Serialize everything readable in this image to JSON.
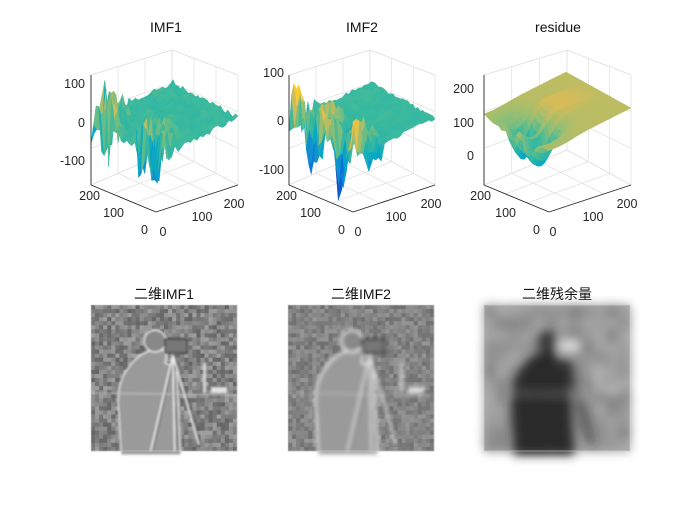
{
  "figure": {
    "background": "#ffffff",
    "colormap": "parula",
    "colormap_stops": [
      "#352a87",
      "#0363e1",
      "#1485d4",
      "#06a7c6",
      "#38b99e",
      "#92bf73",
      "#d9ba56",
      "#fcce2e",
      "#f9fb0e"
    ]
  },
  "chart_data": [
    {
      "type": "surface3d",
      "title": "IMF1",
      "xlabel": "",
      "ylabel": "",
      "zlabel": "",
      "x_ticks": [
        0,
        100,
        200
      ],
      "y_ticks": [
        0,
        100,
        200
      ],
      "z_ticks": [
        -100,
        0,
        100
      ],
      "xlim": [
        0,
        256
      ],
      "ylim": [
        0,
        256
      ],
      "zlim": [
        -140,
        140
      ],
      "grid": true,
      "surface": "high-frequency fluctuations approximately between -120 and 140, near-flat on the outer half"
    },
    {
      "type": "surface3d",
      "title": "IMF2",
      "xlabel": "",
      "ylabel": "",
      "zlabel": "",
      "x_ticks": [
        0,
        100,
        200
      ],
      "y_ticks": [
        0,
        100,
        200
      ],
      "z_ticks": [
        -100,
        0,
        100
      ],
      "xlim": [
        0,
        256
      ],
      "ylim": [
        0,
        256
      ],
      "zlim": [
        -140,
        140
      ],
      "grid": true,
      "surface": "medium-frequency fluctuations approximately between -110 and 110, near-flat on the outer half"
    },
    {
      "type": "surface3d",
      "title": "residue",
      "xlabel": "",
      "ylabel": "",
      "zlabel": "",
      "x_ticks": [
        0,
        100,
        200
      ],
      "y_ticks": [
        0,
        100,
        200
      ],
      "z_ticks": [
        0,
        100,
        200
      ],
      "xlim": [
        0,
        256
      ],
      "ylim": [
        0,
        256
      ],
      "zlim": [
        -60,
        240
      ],
      "grid": true,
      "surface": "smooth trend approximately between -40 and 200 with a deep depression on the front-left"
    },
    {
      "type": "image",
      "title": "二维IMF1",
      "colormap": "gray",
      "content": "grayscale fine-detail image of a photographer with tripod"
    },
    {
      "type": "image",
      "title": "二维IMF2",
      "colormap": "gray",
      "content": "grayscale medium-detail image of a photographer with tripod"
    },
    {
      "type": "image",
      "title": "二维残余量",
      "colormap": "gray",
      "content": "blurred grayscale image of a photographer with tripod"
    }
  ]
}
